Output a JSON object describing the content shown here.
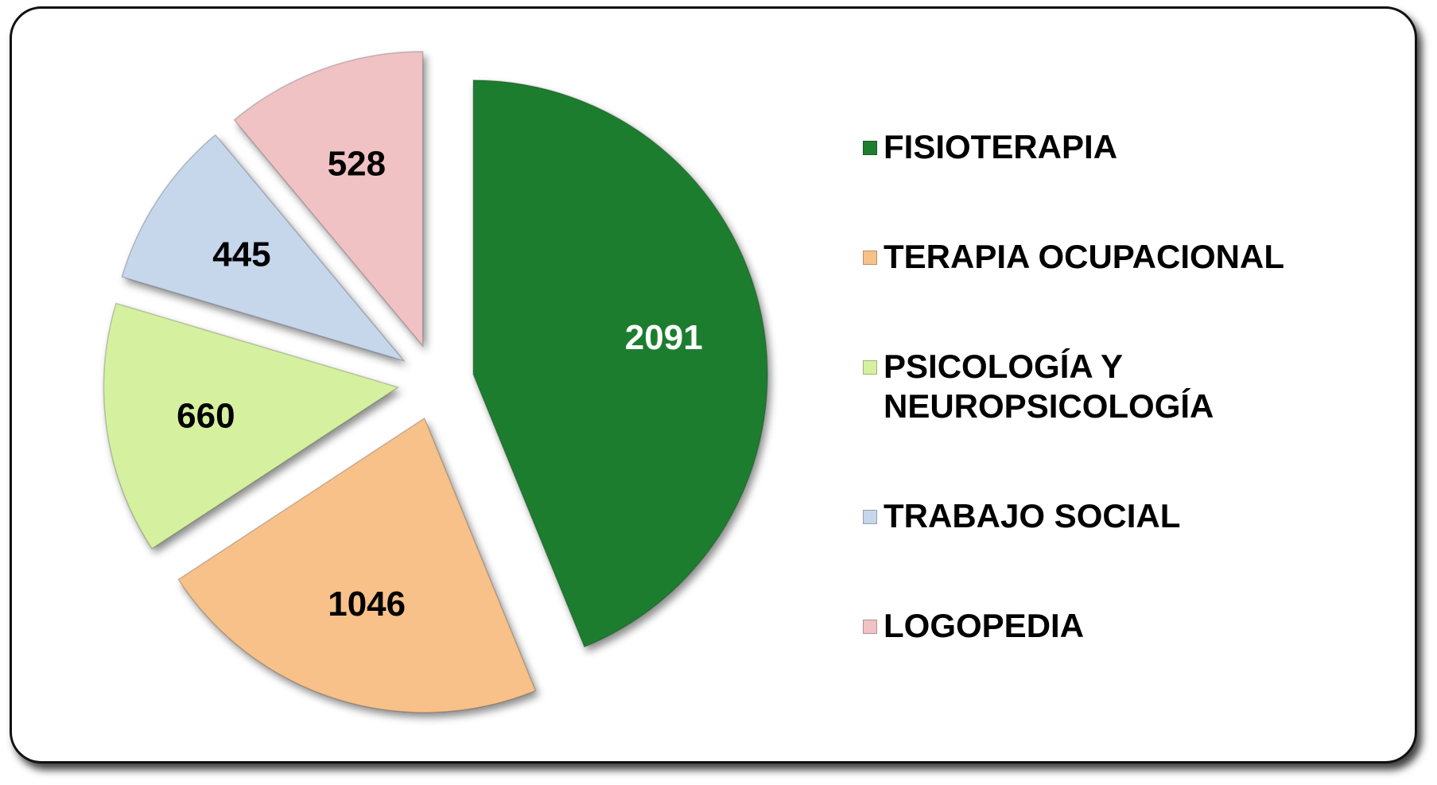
{
  "chart_data": {
    "type": "pie",
    "categories": [
      "FISIOTERAPIA",
      "TERAPIA OCUPACIONAL",
      "PSICOLOGÍA Y NEUROPSICOLOGÍA",
      "TRABAJO SOCIAL",
      "LOGOPEDIA"
    ],
    "values": [
      2091,
      1046,
      660,
      445,
      528
    ],
    "colors": [
      "#1f7d2f",
      "#f7c189",
      "#d5f19f",
      "#c6d6eb",
      "#f0c2c4"
    ],
    "label_colors": [
      "#ffffff",
      "#000000",
      "#000000",
      "#000000",
      "#000000"
    ]
  }
}
